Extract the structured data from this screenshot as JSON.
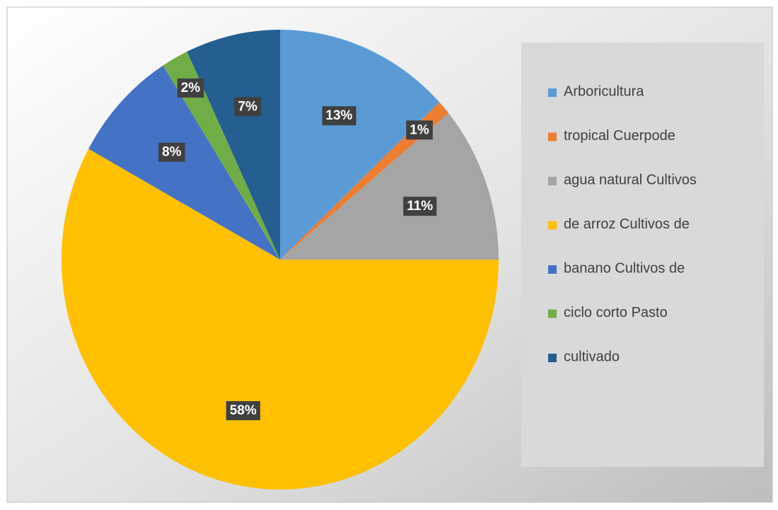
{
  "chart_data": {
    "type": "pie",
    "categories": [
      "Arboricultura",
      "tropical Cuerpode",
      "agua natural Cultivos",
      "de arroz Cultivos de",
      "banano Cultivos de",
      "ciclo corto Pasto",
      "cultivado"
    ],
    "values": [
      13,
      1,
      11,
      58,
      8,
      2,
      7
    ],
    "value_labels": [
      "13%",
      "1%",
      "11%",
      "58%",
      "8%",
      "2%",
      "7%"
    ],
    "colors": [
      "#5b9bd5",
      "#ed7d31",
      "#a5a5a5",
      "#ffc000",
      "#4472c4",
      "#70ad47",
      "#255e91"
    ],
    "legend": "right"
  }
}
